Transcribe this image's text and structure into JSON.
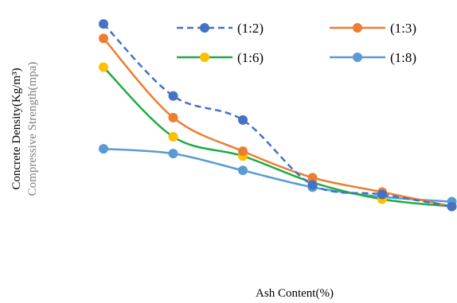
{
  "chart_data": {
    "type": "line",
    "title": "",
    "xlabel": "Ash Content(%)",
    "ylabel_outer": "Concrete Density(Kg/m³)",
    "ylabel_inner": "Compressive Strength(mpa)",
    "x": [
      1,
      2,
      3,
      4,
      5,
      6
    ],
    "ylim": [
      0,
      100
    ],
    "grid": false,
    "legend_position": "top-right",
    "series": [
      {
        "name": "(1:2)",
        "color": "#4472C4",
        "dashed": true,
        "values": [
          96,
          66,
          56,
          29,
          25,
          20
        ]
      },
      {
        "name": "(1:3)",
        "color": "#ED7D31",
        "dashed": false,
        "values": [
          90,
          57,
          43,
          32,
          26,
          20
        ]
      },
      {
        "name": "(1:6)",
        "color": "#22AA44",
        "dashed": false,
        "values": [
          78,
          49,
          41,
          30,
          23,
          20
        ]
      },
      {
        "name": "(1:8)",
        "color": "#5B9BD5",
        "dashed": false,
        "values": [
          44,
          42,
          35,
          28,
          24,
          22
        ]
      }
    ],
    "marker_colors": {
      "(1:2)": "#4472C4",
      "(1:3)": "#ED7D31",
      "(1:6)": "#FFC000",
      "(1:8)": "#5B9BD5"
    }
  }
}
